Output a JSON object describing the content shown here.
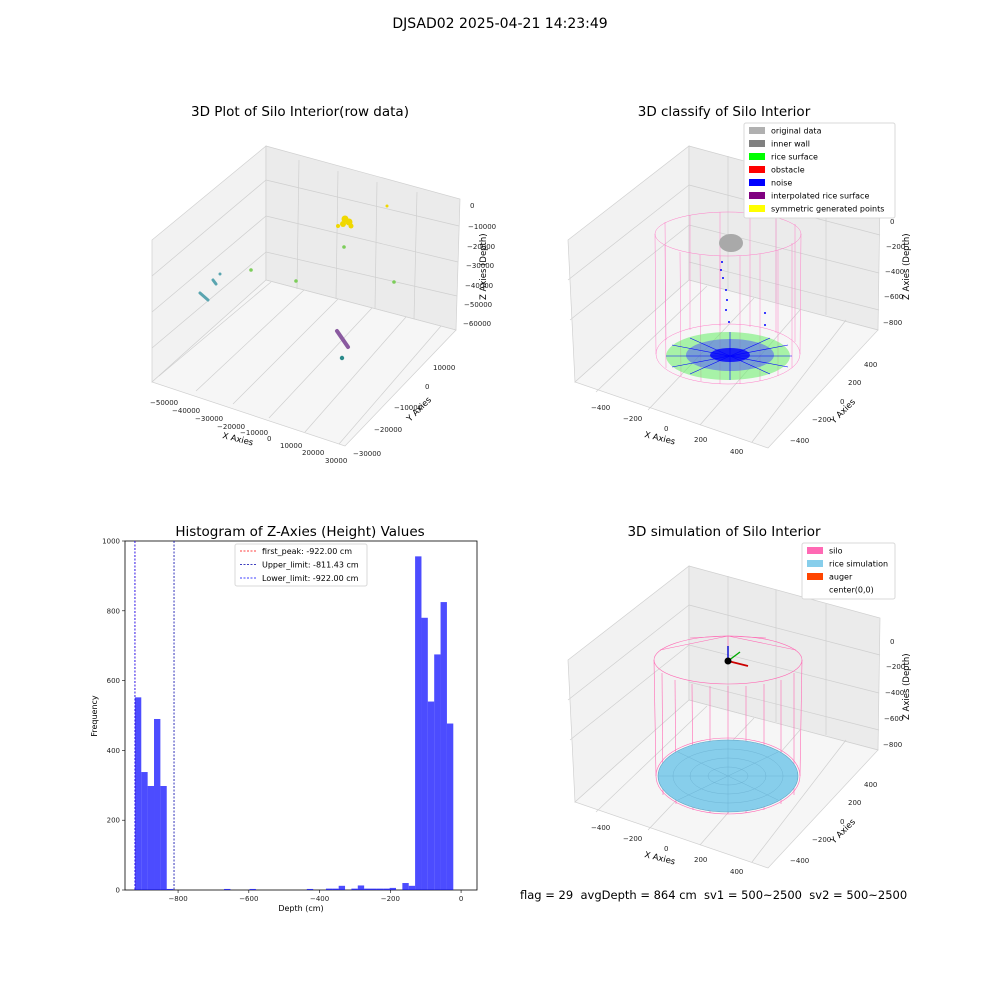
{
  "suptitle": "DJSAD02 2025-04-21 14:23:49",
  "panels": {
    "raw": {
      "title": "3D Plot of Silo Interior(row data)",
      "xlabel": "X Axies",
      "ylabel": "Y Axies",
      "zlabel": "Z Axies (Depth)",
      "xticks": [
        "−50000",
        "−40000",
        "−30000",
        "−20000",
        "−10000",
        "0",
        "10000",
        "20000",
        "30000"
      ],
      "yticks": [
        "−30000",
        "−20000",
        "−10000",
        "0",
        "10000"
      ],
      "zticks": [
        "0",
        "−10000",
        "−20000",
        "−30000",
        "−40000",
        "−50000",
        "−60000"
      ]
    },
    "classify": {
      "title": "3D classify of Silo Interior",
      "xlabel": "X Axies",
      "ylabel": "Y Axies",
      "zlabel": "Z Axies (Depth)",
      "xticks": [
        "−400",
        "−200",
        "0",
        "200",
        "400"
      ],
      "yticks": [
        "−400",
        "−200",
        "0",
        "200",
        "400"
      ],
      "zticks": [
        "0",
        "−200",
        "−400",
        "−600",
        "−800"
      ],
      "legend": [
        {
          "label": "original data",
          "color": "#b0b0b0"
        },
        {
          "label": "inner wall",
          "color": "#808080"
        },
        {
          "label": "rice surface",
          "color": "#00ff00"
        },
        {
          "label": "obstacle",
          "color": "#ff0000"
        },
        {
          "label": "noise",
          "color": "#0000ff"
        },
        {
          "label": "interpolated rice surface",
          "color": "#800080"
        },
        {
          "label": "symmetric generated points",
          "color": "#ffff00"
        }
      ]
    },
    "simulation": {
      "title": "3D simulation of Silo Interior",
      "xlabel": "X Axies",
      "ylabel": "Y Axies",
      "zlabel": "Z Axies (Depth)",
      "xticks": [
        "−400",
        "−200",
        "0",
        "200",
        "400"
      ],
      "yticks": [
        "−400",
        "−200",
        "0",
        "200",
        "400"
      ],
      "zticks": [
        "0",
        "−200",
        "−400",
        "−600",
        "−800"
      ],
      "legend": [
        {
          "label": "silo",
          "color": "#ff69b4"
        },
        {
          "label": "rice simulation",
          "color": "#87ceeb"
        },
        {
          "label": "auger",
          "color": "#ff4500"
        },
        {
          "label": "center(0,0)",
          "color": "#ffffff"
        }
      ]
    }
  },
  "footer": "flag = 29  avgDepth = 864 cm  sv1 = 500~2500  sv2 = 500~2500",
  "chart_data": {
    "type": "bar",
    "title": "Histogram of Z-Axies (Height) Values",
    "xlabel": "Depth (cm)",
    "ylabel": "Frequency",
    "xlim": [
      -950,
      45
    ],
    "ylim": [
      0,
      1000
    ],
    "xticks": [
      -800,
      -600,
      -400,
      -200,
      0
    ],
    "yticks": [
      0,
      200,
      400,
      600,
      800,
      1000
    ],
    "bar_color": "#0000ff",
    "bins": [
      {
        "x0": -922,
        "x1": -904,
        "value": 552
      },
      {
        "x0": -904,
        "x1": -886,
        "value": 338
      },
      {
        "x0": -886,
        "x1": -868,
        "value": 298
      },
      {
        "x0": -868,
        "x1": -850,
        "value": 490
      },
      {
        "x0": -850,
        "x1": -832,
        "value": 298
      },
      {
        "x0": -832,
        "x1": -814,
        "value": 3
      },
      {
        "x0": -670,
        "x1": -652,
        "value": 3
      },
      {
        "x0": -598,
        "x1": -580,
        "value": 3
      },
      {
        "x0": -436,
        "x1": -418,
        "value": 3
      },
      {
        "x0": -382,
        "x1": -364,
        "value": 4
      },
      {
        "x0": -364,
        "x1": -346,
        "value": 4
      },
      {
        "x0": -346,
        "x1": -328,
        "value": 12
      },
      {
        "x0": -310,
        "x1": -292,
        "value": 4
      },
      {
        "x0": -292,
        "x1": -274,
        "value": 13
      },
      {
        "x0": -274,
        "x1": -256,
        "value": 4
      },
      {
        "x0": -256,
        "x1": -238,
        "value": 4
      },
      {
        "x0": -238,
        "x1": -220,
        "value": 4
      },
      {
        "x0": -220,
        "x1": -202,
        "value": 4
      },
      {
        "x0": -202,
        "x1": -184,
        "value": 6
      },
      {
        "x0": -166,
        "x1": -148,
        "value": 20
      },
      {
        "x0": -148,
        "x1": -130,
        "value": 12
      },
      {
        "x0": -130,
        "x1": -112,
        "value": 956
      },
      {
        "x0": -112,
        "x1": -94,
        "value": 780
      },
      {
        "x0": -94,
        "x1": -76,
        "value": 540
      },
      {
        "x0": -76,
        "x1": -58,
        "value": 675
      },
      {
        "x0": -58,
        "x1": -40,
        "value": 825
      },
      {
        "x0": -40,
        "x1": -22,
        "value": 477
      }
    ],
    "lines": [
      {
        "label": "first_peak: -922.00 cm",
        "x": -922,
        "color": "#ff0000"
      },
      {
        "label": "Upper_limit: -811.43 cm",
        "x": -811.43,
        "color": "#0000aa"
      },
      {
        "label": "Lower_limit: -922.00 cm",
        "x": -922,
        "color": "#0000ff"
      }
    ]
  }
}
